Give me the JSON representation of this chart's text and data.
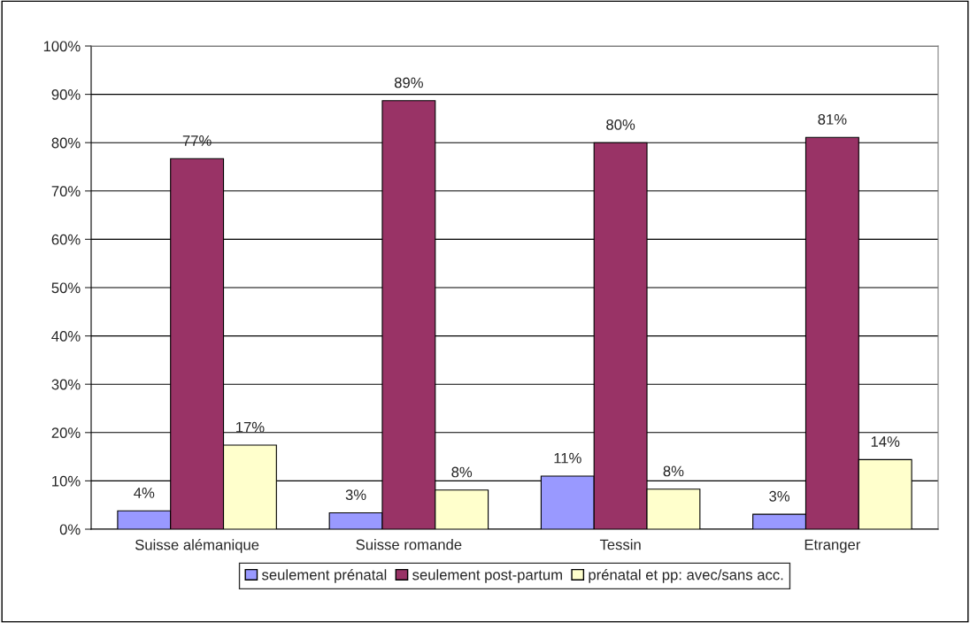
{
  "chart_data": {
    "type": "bar",
    "categories": [
      "Suisse alémanique",
      "Suisse romande",
      "Tessin",
      "Etranger"
    ],
    "series": [
      {
        "name": "seulement prénatal",
        "color": "#9999ff",
        "values": [
          3.8,
          3.4,
          11.0,
          3.1
        ],
        "value_labels": [
          "4%",
          "3%",
          "11%",
          "3%"
        ]
      },
      {
        "name": "seulement post-partum",
        "color": "#993366",
        "values": [
          76.7,
          88.7,
          80.0,
          81.1
        ],
        "value_labels": [
          "77%",
          "89%",
          "80%",
          "81%"
        ]
      },
      {
        "name": "prénatal et pp: avec/sans acc.",
        "color": "#ffffcc",
        "values": [
          17.4,
          8.1,
          8.3,
          14.4
        ],
        "value_labels": [
          "17%",
          "8%",
          "8%",
          "14%"
        ]
      }
    ],
    "ylim": [
      0,
      100
    ],
    "yticks": [
      {
        "value": 0,
        "label": "0%"
      },
      {
        "value": 10,
        "label": "10%"
      },
      {
        "value": 20,
        "label": "20%"
      },
      {
        "value": 30,
        "label": "30%"
      },
      {
        "value": 40,
        "label": "40%"
      },
      {
        "value": 50,
        "label": "50%"
      },
      {
        "value": 60,
        "label": "60%"
      },
      {
        "value": 70,
        "label": "70%"
      },
      {
        "value": 80,
        "label": "80%"
      },
      {
        "value": 90,
        "label": "90%"
      },
      {
        "value": 100,
        "label": "100%"
      }
    ],
    "grid": "y",
    "legend": "bottom"
  }
}
